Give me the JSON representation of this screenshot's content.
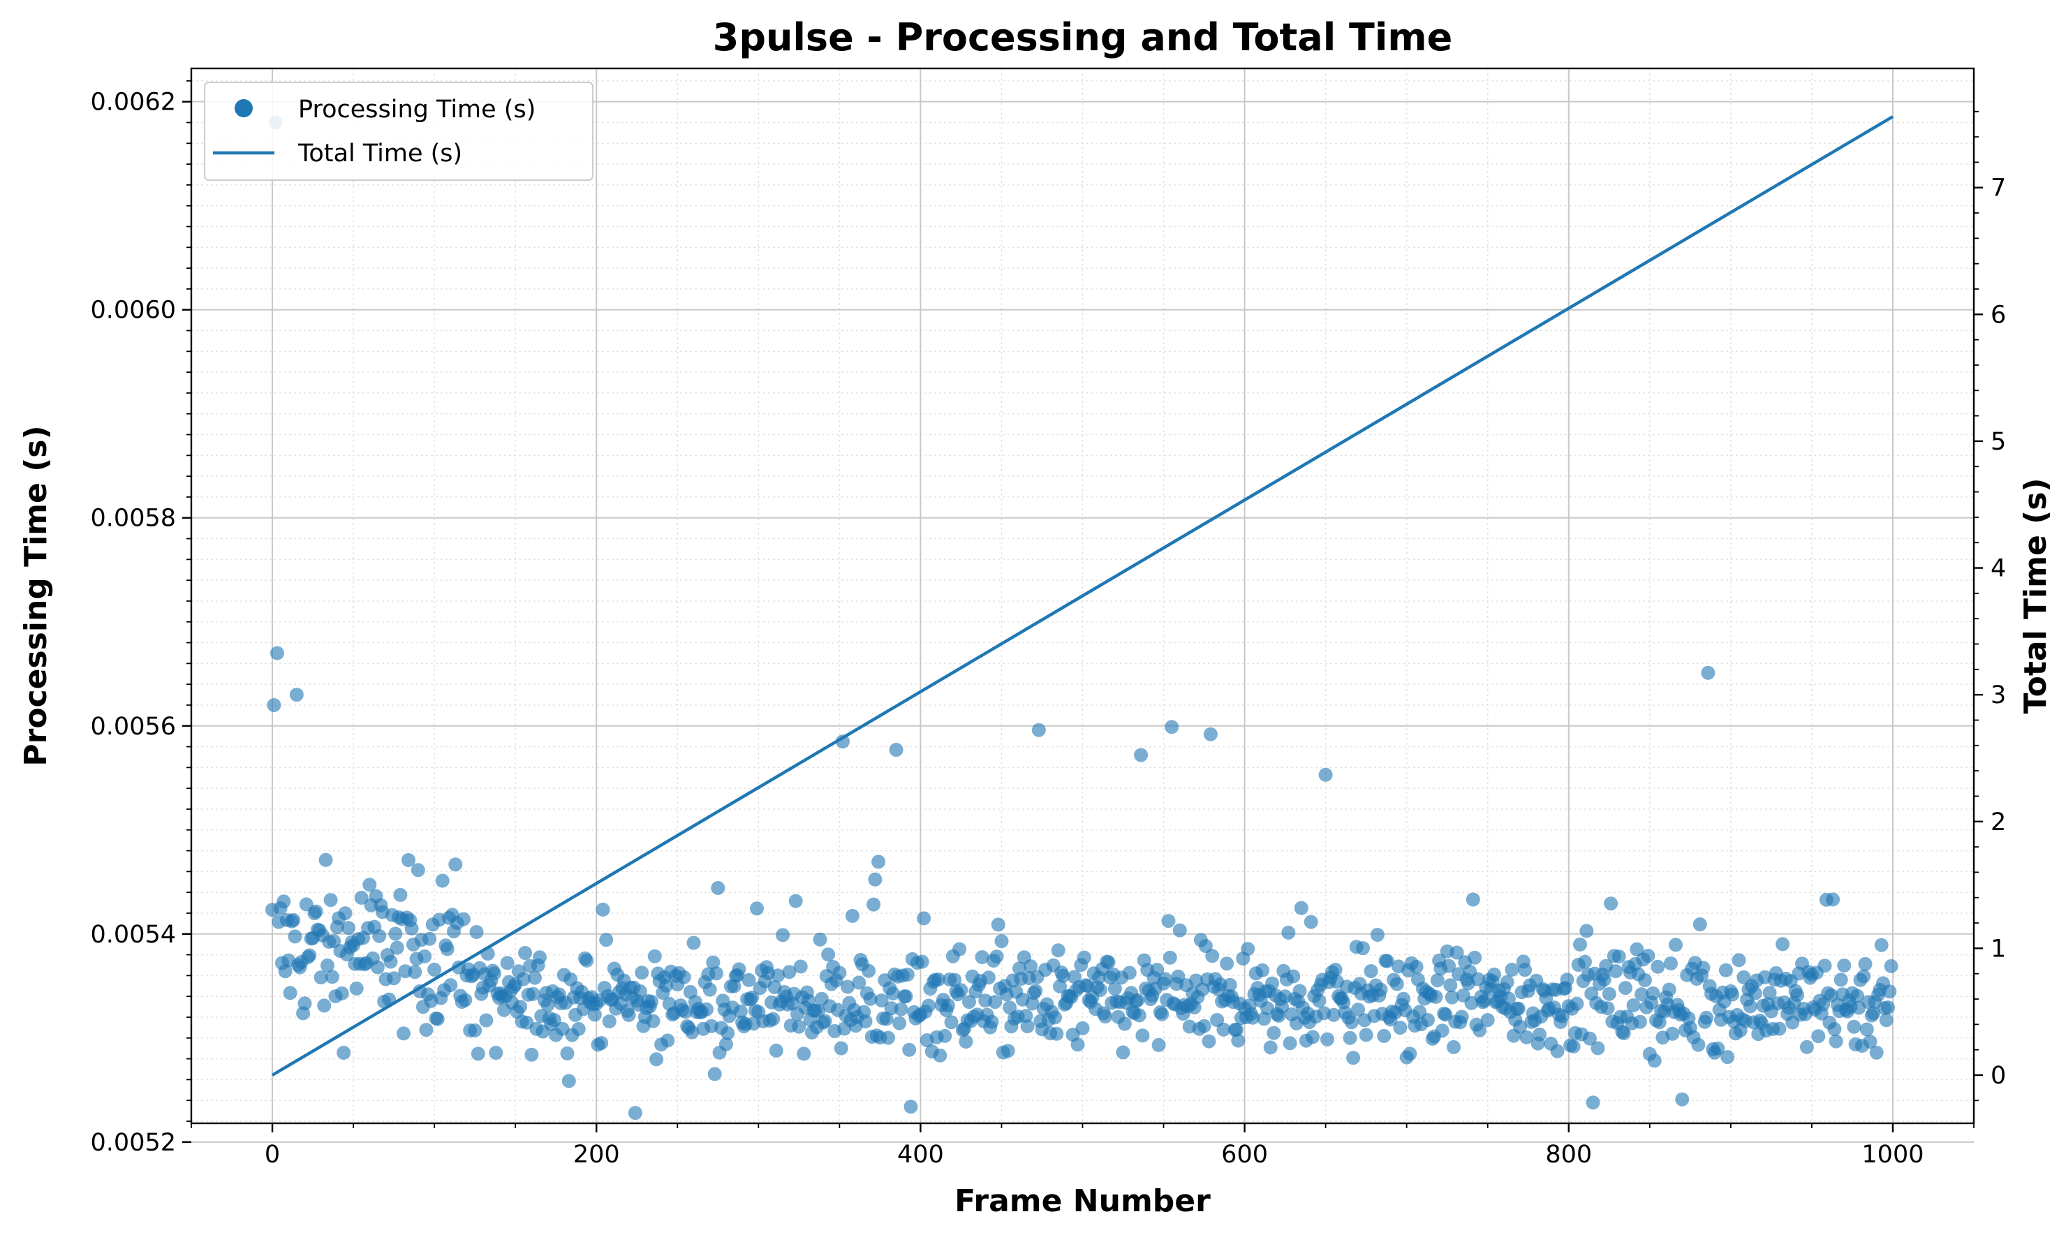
{
  "colors": {
    "series": "#1f77b4",
    "grid_major": "#c8c8c8",
    "grid_minor": "#e4e4e4",
    "axis": "#000000"
  },
  "chart_data": {
    "type": "scatter",
    "title": "3pulse - Processing and Total Time",
    "xlabel": "Frame Number",
    "ylabel": "Processing Time (s)",
    "y2label": "Total Time (s)",
    "xlim": [
      -50,
      1050
    ],
    "ylim": [
      0.005218,
      0.006232
    ],
    "y2lim": [
      -0.38,
      7.94
    ],
    "grid": true,
    "legend_position": "top-left",
    "x_ticks": [
      "0",
      "200",
      "400",
      "600",
      "800",
      "1000"
    ],
    "y_ticks": [
      "0.0052",
      "0.0054",
      "0.0056",
      "0.0058",
      "0.0060",
      "0.0062"
    ],
    "y2_ticks": [
      "0",
      "1",
      "2",
      "3",
      "4",
      "5",
      "6",
      "7"
    ],
    "series": [
      {
        "name": "Processing Time (s)",
        "kind": "scatter",
        "axis": "left",
        "alpha": 0.6,
        "outlier_points": [
          [
            1,
            0.00562
          ],
          [
            2,
            0.00618
          ],
          [
            3,
            0.00567
          ],
          [
            15,
            0.00563
          ],
          [
            352,
            0.005585
          ],
          [
            385,
            0.005577
          ],
          [
            473,
            0.005596
          ],
          [
            536,
            0.005572
          ],
          [
            555,
            0.005599
          ],
          [
            579,
            0.005592
          ],
          [
            650,
            0.005553
          ],
          [
            886,
            0.005651
          ],
          [
            394,
            0.005234
          ],
          [
            224,
            0.005228
          ],
          [
            815,
            0.005238
          ],
          [
            870,
            0.005241
          ]
        ],
        "sample": {
          "count": 1000,
          "x_start": 0,
          "x_end": 999,
          "baseline_mean": 0.005335,
          "baseline_min": 0.005235,
          "baseline_max": 0.00549,
          "early_frames": 120,
          "early_mean": 0.005385,
          "early_max": 0.005542
        }
      },
      {
        "name": "Total Time (s)",
        "kind": "line",
        "axis": "right",
        "x": [
          0,
          1000
        ],
        "values": [
          0.0,
          7.56
        ]
      }
    ]
  }
}
